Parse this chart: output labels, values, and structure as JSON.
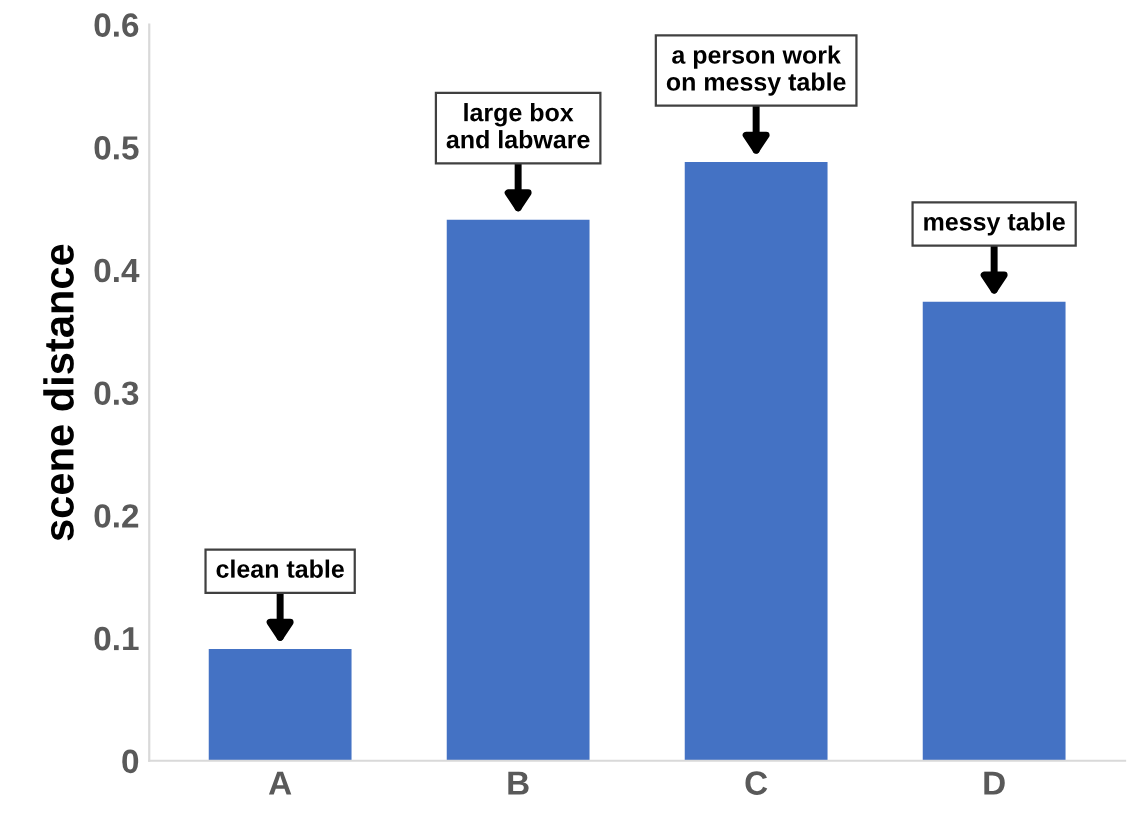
{
  "chart_data": {
    "type": "bar",
    "ylabel": "scene distance",
    "categories": [
      "A",
      "B",
      "C",
      "D"
    ],
    "values": [
      0.091,
      0.441,
      0.488,
      0.374
    ],
    "color": "#4472c4",
    "ylim": [
      0,
      0.6
    ],
    "yticks": [
      {
        "value": 0,
        "label": "0"
      },
      0.1,
      0.2,
      0.3,
      0.4,
      0.5,
      0.6
    ],
    "grid": false,
    "annotations": [
      {
        "text": "clean table",
        "x": "A",
        "y": 0.091
      },
      {
        "text": "large box\nand labware",
        "x": "B",
        "y": 0.441
      },
      {
        "text": "a person work\non messy table",
        "x": "C",
        "y": 0.488
      },
      {
        "text": "messy table",
        "x": "D",
        "y": 0.374
      }
    ]
  }
}
